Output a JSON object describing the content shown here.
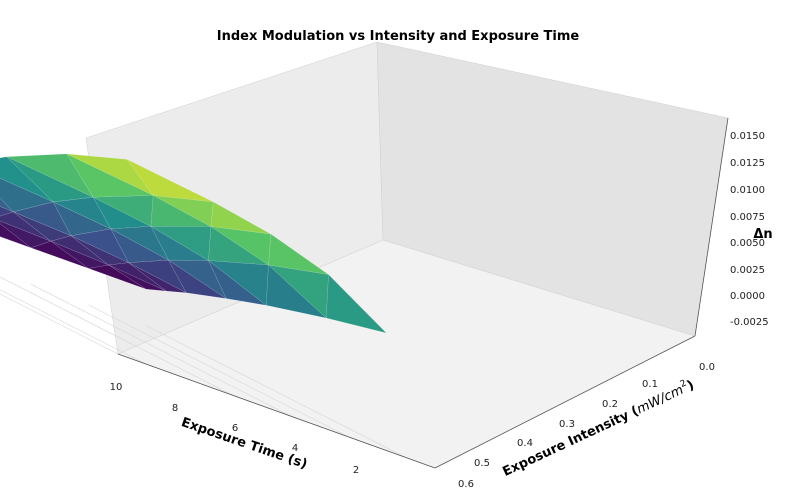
{
  "chart_data": {
    "type": "surface3d",
    "title": "Index Modulation vs Intensity and Exposure Time",
    "xlabel": "Exposure Time (s)",
    "ylabel_parts": [
      "Exposure Intensity (",
      "mW/cm",
      "2",
      ")"
    ],
    "zlabel": "Δn",
    "colormap": "viridis",
    "x_ticks": [
      "10",
      "8",
      "6",
      "4",
      "2"
    ],
    "y_ticks": [
      "0.6",
      "0.5",
      "0.4",
      "0.3",
      "0.2",
      "0.1",
      "0.0"
    ],
    "z_ticks": [
      "-0.0025",
      "0.0000",
      "0.0025",
      "0.0050",
      "0.0075",
      "0.0100",
      "0.0125",
      "0.0150"
    ],
    "time_s": [
      1,
      3,
      5,
      7,
      10
    ],
    "intensity_mw_cm2": [
      0.0,
      0.05,
      0.1,
      0.2,
      0.3,
      0.45,
      0.6
    ],
    "dn": [
      [
        0.0,
        0.0008,
        0.0016,
        0.003,
        0.0043,
        0.006,
        0.0075
      ],
      [
        0.0,
        0.0013,
        0.0025,
        0.0047,
        0.0066,
        0.0091,
        0.0111
      ],
      [
        0.0,
        0.0016,
        0.0031,
        0.0057,
        0.0079,
        0.0108,
        0.013
      ],
      [
        0.0,
        0.0018,
        0.0034,
        0.0063,
        0.0087,
        0.0118,
        0.0141
      ],
      [
        0.0,
        0.002,
        0.0038,
        0.007,
        0.0096,
        0.0128,
        0.0152
      ]
    ],
    "z_range": [
      -0.0035,
      0.0155
    ]
  }
}
